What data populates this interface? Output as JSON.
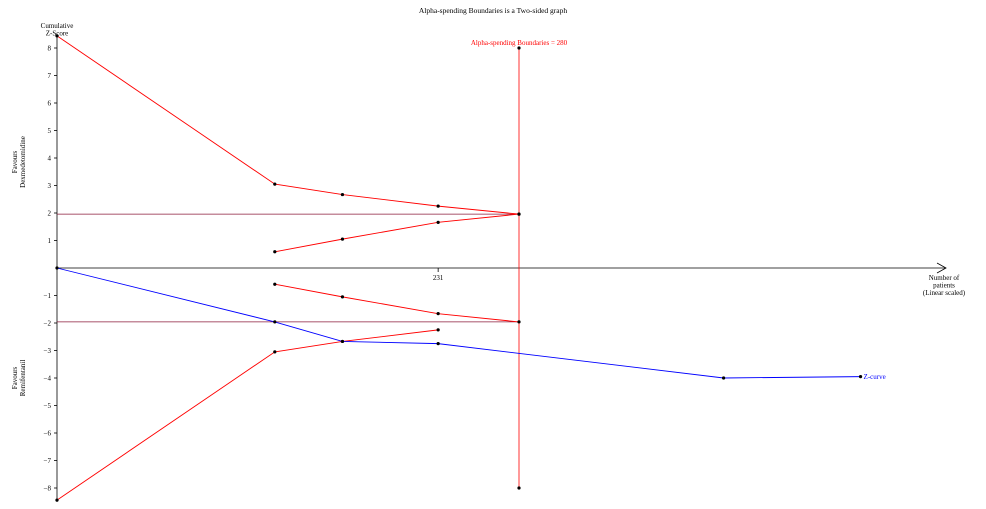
{
  "chart_data": {
    "type": "line",
    "title": "Alpha-spending Boundaries is a Two-sided graph",
    "ylabel": "Cumulative\nZ-Score",
    "xlabel": "Number of\npatients\n(Linear scaled)",
    "favours_top": "Favours\nDexmedetomidine",
    "favours_bottom": "Favours\nRemifentanil",
    "x_ticks": [
      231
    ],
    "y_ticks": [
      -8,
      -7,
      -6,
      -5,
      -4,
      -3,
      -2,
      -1,
      1,
      2,
      3,
      4,
      5,
      6,
      7,
      8
    ],
    "ylim": [
      -8.5,
      8.5
    ],
    "xlim": [
      0,
      600
    ],
    "required_information_size": {
      "label": "Alpha-spending Boundaries = 280",
      "x": 280,
      "y_range": [
        -8.0,
        8.0
      ]
    },
    "conventional_boundaries": [
      1.96,
      -1.96
    ],
    "series": [
      {
        "name": "",
        "role": "upper-boundary",
        "color": "#ff0000",
        "points": [
          [
            0,
            8.44
          ],
          [
            132,
            3.05
          ],
          [
            173,
            2.67
          ],
          [
            231,
            2.25
          ],
          [
            280,
            1.96
          ]
        ]
      },
      {
        "name": "",
        "role": "upper-inner-boundary",
        "color": "#ff0000",
        "points": [
          [
            132,
            0.59
          ],
          [
            173,
            1.05
          ],
          [
            231,
            1.66
          ],
          [
            280,
            1.96
          ]
        ]
      },
      {
        "name": "",
        "role": "lower-inner-boundary",
        "color": "#ff0000",
        "points": [
          [
            132,
            -0.59
          ],
          [
            173,
            -1.05
          ],
          [
            231,
            -1.66
          ],
          [
            280,
            -1.96
          ]
        ]
      },
      {
        "name": "",
        "role": "lower-boundary",
        "color": "#ff0000",
        "points": [
          [
            0,
            -8.44
          ],
          [
            132,
            -3.05
          ],
          [
            173,
            -2.67
          ],
          [
            231,
            -2.25
          ]
        ]
      },
      {
        "name": "Z-curve",
        "role": "z-curve",
        "color": "#0000ff",
        "points": [
          [
            0,
            0.0
          ],
          [
            132,
            -1.96
          ],
          [
            173,
            -2.67
          ],
          [
            231,
            -2.75
          ],
          [
            404,
            -4.0
          ],
          [
            487,
            -3.95
          ]
        ]
      }
    ]
  }
}
